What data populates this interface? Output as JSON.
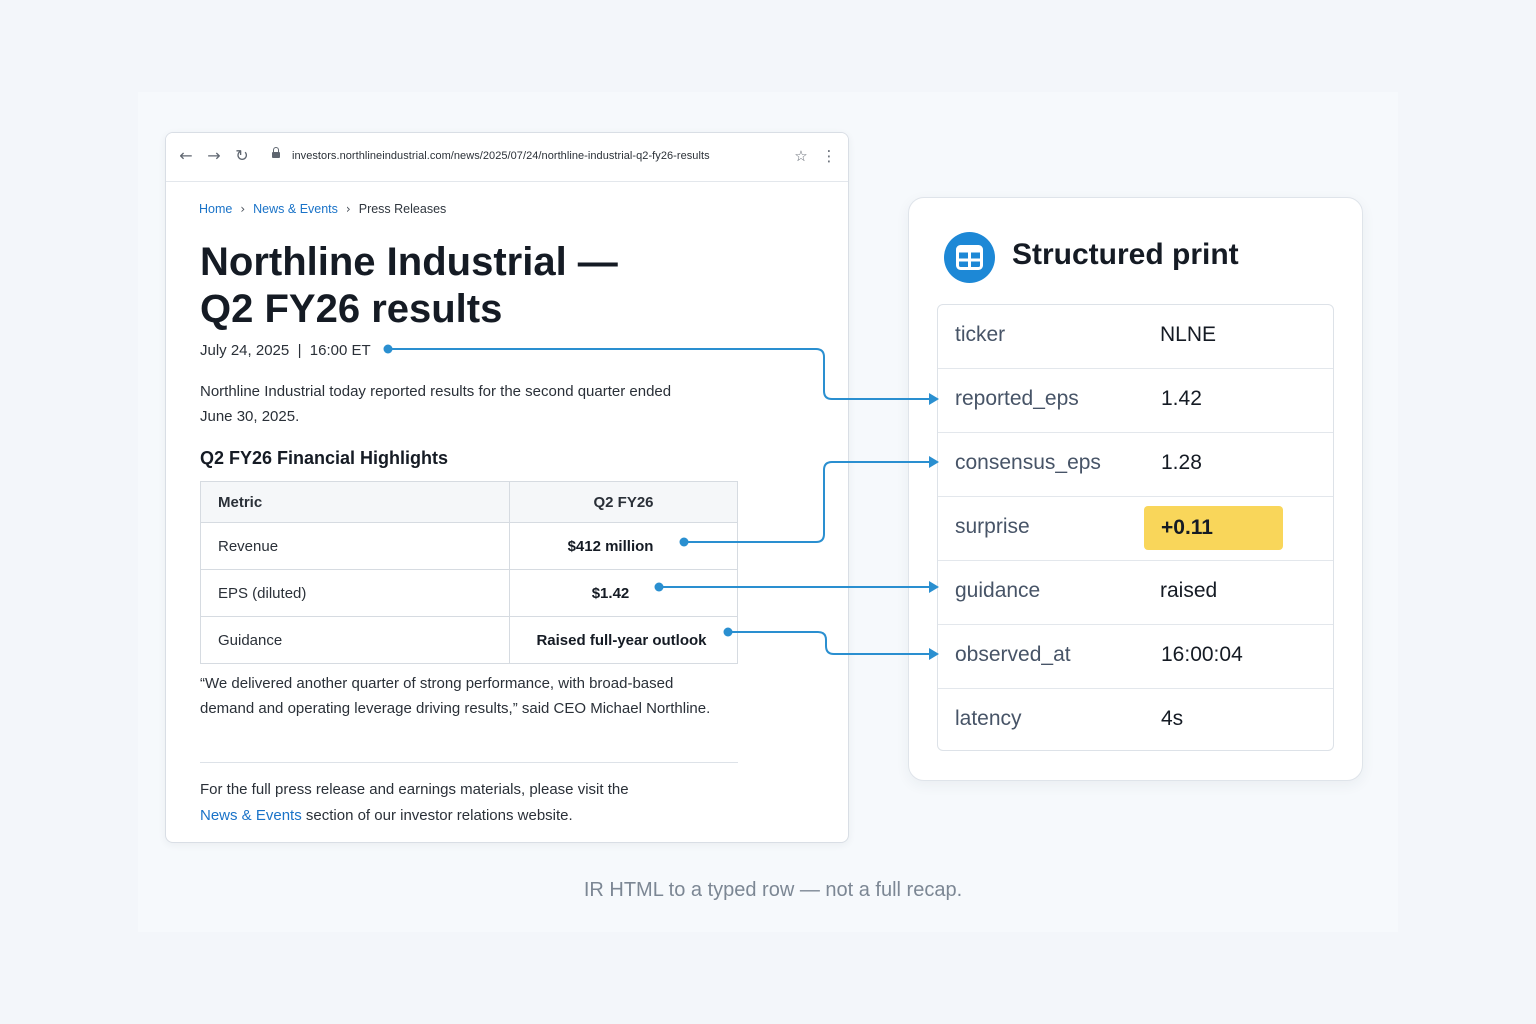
{
  "browser": {
    "url": "investors.northlineindustrial.com/news/2025/07/24/northline-industrial-q2-fy26-results",
    "back_glyph": "←",
    "forward_glyph": "→",
    "reload_glyph": "↻",
    "star_glyph": "☆",
    "menu_glyph": "⋮"
  },
  "breadcrumb": {
    "home": "Home",
    "news": "News & Events",
    "current": "Press Releases",
    "sep": "›"
  },
  "article": {
    "title_line1": "Northline Industrial —",
    "title_line2": "Q2 FY26 results",
    "dateline": "July 24, 2025  |  16:00 ET",
    "lede": "Northline Industrial today reported results for the second quarter ended June 30, 2025.",
    "highlights_heading": "Q2 FY26 Financial Highlights",
    "table": {
      "headers": [
        "Metric",
        "Q2 FY26"
      ],
      "rows": [
        [
          "Revenue",
          "$412 million"
        ],
        [
          "EPS (diluted)",
          "$1.42"
        ],
        [
          "Guidance",
          "Raised full-year outlook"
        ]
      ]
    },
    "quote": "“We delivered another quarter of strong performance, with broad-based demand and operating leverage driving results,” said CEO Michael Northline.",
    "footer_pre": "For the full press release and earnings materials, please visit the",
    "footer_link": "News & Events",
    "footer_post": " section of our investor relations website."
  },
  "card": {
    "title": "Structured print",
    "icon": "table-icon",
    "rows": [
      {
        "key": "ticker",
        "value": "NLNE"
      },
      {
        "key": "reported_eps",
        "value": "1.42"
      },
      {
        "key": "consensus_eps",
        "value": "1.28"
      },
      {
        "key": "surprise",
        "value": "+0.11",
        "highlight": true
      },
      {
        "key": "guidance",
        "value": "raised"
      },
      {
        "key": "observed_at",
        "value": "16:00:04"
      },
      {
        "key": "latency",
        "value": "4s"
      }
    ]
  },
  "colors": {
    "accent": "#1d88d6",
    "connector": "#2a8fd0",
    "highlight": "#f9d65a",
    "link": "#1a73c8"
  },
  "caption": "IR HTML to a typed row — not a full recap."
}
